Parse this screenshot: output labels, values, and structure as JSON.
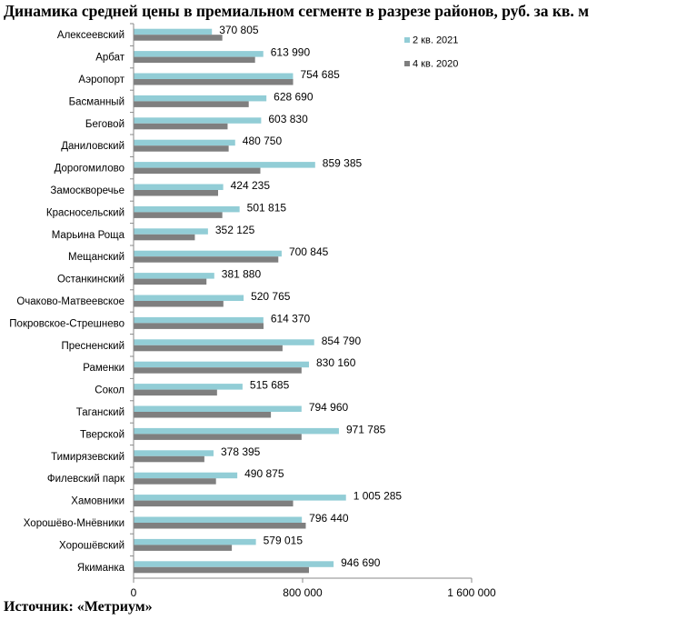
{
  "title": "Динамика средней цены в премиальном сегменте в разрезе районов, руб. за кв. м",
  "source": "Источник: «Метриум»",
  "colors": {
    "series_2021": "#92cdd6",
    "series_2020": "#7f7f7f",
    "axis": "#888888"
  },
  "chart_data": {
    "type": "bar",
    "orientation": "horizontal",
    "categories": [
      "Алексеевский",
      "Арбат",
      "Аэропорт",
      "Басманный",
      "Беговой",
      "Даниловский",
      "Дорогомилово",
      "Замоскворечье",
      "Красносельский",
      "Марьина Роща",
      "Мещанский",
      "Останкинский",
      "Очаково-Матвеевское",
      "Покровское-Стрешнево",
      "Пресненский",
      "Раменки",
      "Сокол",
      "Таганский",
      "Тверской",
      "Тимирязевский",
      "Филевский парк",
      "Хамовники",
      "Хорошёво-Мнёвники",
      "Хорошёвский",
      "Якиманка"
    ],
    "series": [
      {
        "name": "2 кв. 2021",
        "values": [
          370805,
          613990,
          754685,
          628690,
          603830,
          480750,
          859385,
          424235,
          501815,
          352125,
          700845,
          381880,
          520765,
          614370,
          854790,
          830160,
          515685,
          794960,
          971785,
          378395,
          490875,
          1005285,
          796440,
          579015,
          946690
        ]
      },
      {
        "name": "4 кв. 2020",
        "values": [
          420000,
          575000,
          755000,
          545000,
          445000,
          450000,
          600000,
          400000,
          420000,
          290000,
          685000,
          345000,
          425000,
          615000,
          705000,
          795000,
          395000,
          650000,
          795000,
          335000,
          390000,
          755000,
          815000,
          465000,
          830000
        ]
      }
    ],
    "data_labels": [
      "370 805",
      "613 990",
      "754 685",
      "628 690",
      "603 830",
      "480 750",
      "859 385",
      "424 235",
      "501 815",
      "352 125",
      "700 845",
      "381 880",
      "520 765",
      "614 370",
      "854 790",
      "830 160",
      "515 685",
      "794 960",
      "971 785",
      "378 395",
      "490 875",
      "1 005 285",
      "796 440",
      "579 015",
      "946 690"
    ],
    "x_ticks": [
      0,
      800000,
      1600000
    ],
    "x_tick_labels": [
      "0",
      "800 000",
      "1 600 000"
    ],
    "xlim": [
      0,
      1600000
    ],
    "legend_position": "top-right",
    "grid": false
  }
}
